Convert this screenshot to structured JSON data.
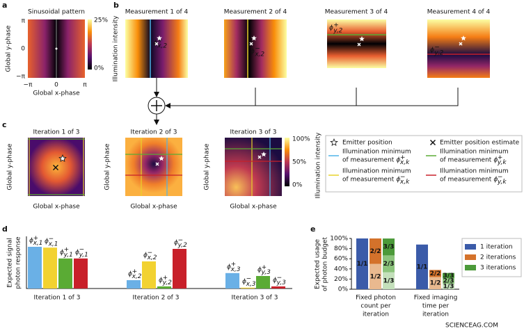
{
  "panel_labels": [
    "a",
    "b",
    "c",
    "d",
    "e"
  ],
  "a": {
    "title": "Sinusoidal pattern",
    "ylabel": "Global y-phase",
    "xlabel": "Global x-phase",
    "yticks": [
      "π",
      "0",
      "−π"
    ],
    "xticks": [
      "−π",
      "0",
      "π"
    ],
    "colorbar_ticks": [
      "25%",
      "0%"
    ]
  },
  "b": {
    "ylabel": "Illumination intensity",
    "measurements": [
      {
        "title": "Measurement 1 of 4",
        "color": "#4fb3e8",
        "symbol": {
          "base": "ϕ",
          "sup": "+",
          "sub": "x,2"
        }
      },
      {
        "title": "Measurement 2 of 4",
        "color": "#e8d22a",
        "symbol": {
          "base": "ϕ",
          "sup": "−",
          "sub": "x,2"
        }
      },
      {
        "title": "Measurement 3 of 4",
        "color": "#5aab34",
        "symbol": {
          "base": "ϕ",
          "sup": "+",
          "sub": "y,2"
        }
      },
      {
        "title": "Measurement 4 of 4",
        "color": "#c8202a",
        "symbol": {
          "base": "ϕ",
          "sup": "−",
          "sub": "y,2"
        }
      }
    ]
  },
  "c": {
    "iterations": [
      {
        "title": "Iteration 1 of 3",
        "color": "#b5c77a"
      },
      {
        "title": "Iteration 2 of 3",
        "color": "#7bb45a"
      },
      {
        "title": "Iteration 3 of 3",
        "color": "#3f9a3a"
      }
    ],
    "ylabel": "Global y-phase",
    "xlabel": "Global x-phase",
    "colorbar_label": "Illumination intensity",
    "colorbar_ticks": [
      "100%",
      "50%",
      "0%"
    ],
    "legend": {
      "emitter": "Emitter position",
      "estimate": "Emitter position estimate",
      "minima": [
        {
          "line1": "Illumination minimum",
          "line2": "of measurement",
          "color": "#4fb3e8",
          "symbol": {
            "base": "ϕ",
            "sup": "+",
            "sub": "x,k"
          }
        },
        {
          "line1": "Illumination minimum",
          "line2": "of measurement",
          "color": "#5aab34",
          "symbol": {
            "base": "ϕ",
            "sup": "+",
            "sub": "y,k"
          }
        },
        {
          "line1": "Illumination minimum",
          "line2": "of measurement",
          "color": "#e8d22a",
          "symbol": {
            "base": "ϕ",
            "sup": "−",
            "sub": "x,k"
          }
        },
        {
          "line1": "Illumination minimum",
          "line2": "of measurement",
          "color": "#c8202a",
          "symbol": {
            "base": "ϕ",
            "sup": "−",
            "sub": "y,k"
          }
        }
      ]
    }
  },
  "d": {
    "ylabel": [
      "Expected signal",
      "photon response"
    ],
    "ylim": [
      0,
      1.25
    ],
    "groups": [
      {
        "name": "Iteration 1 of 3",
        "bars": [
          {
            "value": 1.0,
            "color": "#6ab0e6",
            "symbol": {
              "base": "ϕ",
              "sup": "+",
              "sub": "x,1"
            }
          },
          {
            "value": 0.98,
            "color": "#f2d231",
            "symbol": {
              "base": "ϕ",
              "sup": "−",
              "sub": "x,1"
            }
          },
          {
            "value": 0.72,
            "color": "#5aab34",
            "symbol": {
              "base": "ϕ",
              "sup": "+",
              "sub": "y,1"
            }
          },
          {
            "value": 0.72,
            "color": "#c8202a",
            "symbol": {
              "base": "ϕ",
              "sup": "−",
              "sub": "y,1"
            }
          }
        ]
      },
      {
        "name": "Iteration 2 of 3",
        "bars": [
          {
            "value": 0.2,
            "color": "#6ab0e6",
            "symbol": {
              "base": "ϕ",
              "sup": "+",
              "sub": "x,2"
            }
          },
          {
            "value": 0.65,
            "color": "#f2d231",
            "symbol": {
              "base": "ϕ",
              "sup": "−",
              "sub": "x,2"
            }
          },
          {
            "value": 0.05,
            "color": "#5aab34",
            "symbol": {
              "base": "ϕ",
              "sup": "+",
              "sub": "y,2"
            }
          },
          {
            "value": 0.95,
            "color": "#c8202a",
            "symbol": {
              "base": "ϕ",
              "sup": "−",
              "sub": "y,2"
            }
          }
        ]
      },
      {
        "name": "Iteration 3 of 3",
        "bars": [
          {
            "value": 0.37,
            "color": "#6ab0e6",
            "symbol": {
              "base": "ϕ",
              "sup": "+",
              "sub": "x,3"
            }
          },
          {
            "value": 0.02,
            "color": "#f2d231",
            "symbol": {
              "base": "ϕ",
              "sup": "−",
              "sub": "x,3"
            }
          },
          {
            "value": 0.3,
            "color": "#5aab34",
            "symbol": {
              "base": "ϕ",
              "sup": "+",
              "sub": "y,3"
            }
          },
          {
            "value": 0.05,
            "color": "#c8202a",
            "symbol": {
              "base": "ϕ",
              "sup": "−",
              "sub": "y,3"
            }
          }
        ]
      }
    ]
  },
  "e": {
    "ylabel": [
      "Expected usage",
      "of photon budget"
    ],
    "ylim": [
      0,
      100
    ],
    "yticks": [
      {
        "value": 0,
        "label": "0%"
      },
      {
        "value": 20,
        "label": "20%"
      },
      {
        "value": 40,
        "label": "40%"
      },
      {
        "value": 60,
        "label": "60%"
      },
      {
        "value": 80,
        "label": "80%"
      },
      {
        "value": 100,
        "label": "100%"
      }
    ],
    "categories": [
      [
        "Fixed photon",
        "count per",
        "iteration"
      ],
      [
        "Fixed imaging",
        "time per",
        "iteration"
      ]
    ],
    "series": [
      {
        "name": "1 iteration",
        "color": "#3b5ba9",
        "segments": [
          {
            "label": "1/1",
            "color": "#3b5ba9",
            "values": [
              100,
              88
            ]
          }
        ]
      },
      {
        "name": "2 iterations",
        "color": "#d4722b",
        "segments": [
          {
            "label": "1/2",
            "color": "#e9b98f",
            "values": [
              50,
              24
            ]
          },
          {
            "label": "2/2",
            "color": "#d4722b",
            "values": [
              50,
              14
            ]
          }
        ]
      },
      {
        "name": "3 iterations",
        "color": "#4c9a3a",
        "segments": [
          {
            "label": "1/3",
            "color": "#c4e0bb",
            "values": [
              33.3,
              11
            ]
          },
          {
            "label": "2/3",
            "color": "#8cc47c",
            "values": [
              33.3,
              11
            ]
          },
          {
            "label": "3/3",
            "color": "#4c9a3a",
            "values": [
              33.3,
              10
            ]
          }
        ]
      }
    ]
  },
  "watermark": "SCIENCEAG.COM"
}
